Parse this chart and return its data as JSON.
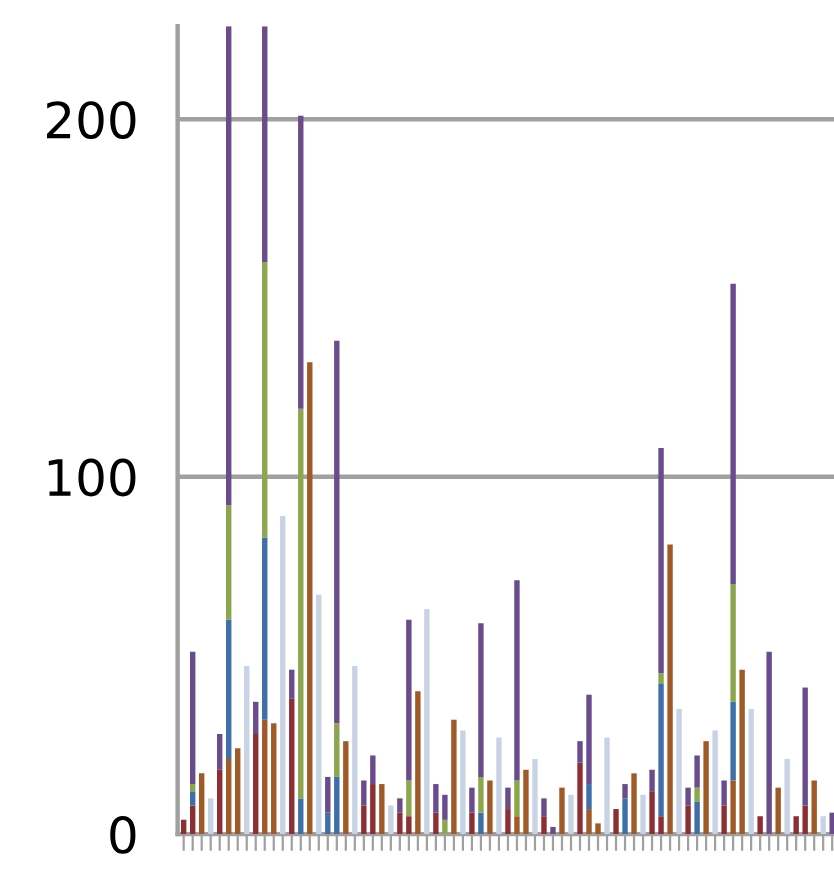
{
  "chart_data": {
    "type": "bar",
    "stacked": true,
    "categories": [
      null,
      null,
      null,
      null,
      null,
      null,
      null,
      null,
      null,
      null,
      null,
      null,
      null,
      null,
      null,
      null,
      null,
      null,
      null,
      null,
      null,
      null,
      null,
      null,
      null,
      null,
      null,
      null,
      null,
      null,
      null,
      null,
      null,
      null,
      null,
      null,
      null,
      null,
      null,
      null,
      null,
      null,
      null,
      null,
      null,
      null,
      null,
      null,
      null,
      null,
      null,
      null,
      null,
      null,
      null,
      null,
      null,
      null,
      null,
      null,
      null,
      null,
      null,
      null,
      null,
      null,
      null,
      null,
      null,
      null,
      null,
      null,
      null
    ],
    "series": [
      {
        "color": "#a05a28",
        "values": [
          0,
          0,
          17,
          0,
          0,
          21,
          24,
          0,
          0,
          32,
          31,
          0,
          0,
          0,
          132,
          0,
          0,
          0,
          26,
          0,
          0,
          0,
          14,
          0,
          0,
          0,
          40,
          0,
          0,
          0,
          32,
          0,
          0,
          0,
          15,
          0,
          0,
          5,
          18,
          0,
          0,
          0,
          13,
          0,
          0,
          7,
          3,
          0,
          0,
          0,
          17,
          0,
          0,
          0,
          81,
          0,
          0,
          0,
          26,
          0,
          0,
          15,
          46,
          0,
          0,
          0,
          13,
          0,
          0,
          0,
          15,
          0,
          0
        ]
      },
      {
        "color": "#8c2f35",
        "values": [
          4,
          8,
          0,
          0,
          18,
          0,
          0,
          0,
          28,
          0,
          0,
          0,
          38,
          0,
          0,
          0,
          0,
          0,
          0,
          0,
          8,
          14,
          0,
          0,
          6,
          5,
          0,
          0,
          6,
          0,
          0,
          0,
          6,
          0,
          0,
          0,
          7,
          0,
          0,
          0,
          5,
          0,
          0,
          0,
          20,
          0,
          0,
          0,
          7,
          0,
          0,
          0,
          12,
          5,
          0,
          0,
          8,
          0,
          0,
          0,
          8,
          0,
          0,
          0,
          5,
          0,
          0,
          0,
          5,
          8,
          0,
          0,
          0
        ]
      },
      {
        "color": "#3e6fa8",
        "values": [
          0,
          4,
          0,
          0,
          0,
          39,
          0,
          0,
          0,
          51,
          0,
          0,
          0,
          10,
          0,
          0,
          6,
          16,
          0,
          0,
          0,
          0,
          0,
          0,
          0,
          0,
          0,
          0,
          0,
          0,
          0,
          0,
          0,
          6,
          0,
          0,
          0,
          0,
          0,
          0,
          0,
          0,
          0,
          0,
          0,
          7,
          0,
          0,
          0,
          10,
          0,
          0,
          0,
          37,
          0,
          0,
          0,
          9,
          0,
          0,
          0,
          22,
          0,
          0,
          0,
          0,
          0,
          0,
          0,
          0,
          0,
          0,
          0
        ]
      },
      {
        "color": "#8ca64e",
        "values": [
          0,
          2,
          0,
          0,
          0,
          32,
          0,
          0,
          0,
          77,
          0,
          0,
          0,
          109,
          0,
          0,
          0,
          15,
          0,
          0,
          0,
          0,
          0,
          0,
          0,
          10,
          0,
          0,
          0,
          4,
          0,
          0,
          0,
          10,
          0,
          0,
          0,
          10,
          0,
          0,
          0,
          0,
          0,
          0,
          0,
          0,
          0,
          0,
          0,
          0,
          0,
          0,
          0,
          3,
          0,
          0,
          0,
          4,
          0,
          0,
          0,
          33,
          0,
          0,
          0,
          0,
          0,
          0,
          0,
          0,
          0,
          0,
          0
        ]
      },
      {
        "color": "#6a4c8c",
        "values": [
          0,
          37,
          0,
          0,
          10,
          134,
          0,
          0,
          9,
          66,
          0,
          0,
          8,
          82,
          0,
          0,
          10,
          107,
          0,
          0,
          7,
          8,
          0,
          0,
          4,
          45,
          0,
          0,
          8,
          7,
          0,
          0,
          7,
          43,
          0,
          0,
          6,
          56,
          0,
          0,
          5,
          2,
          0,
          0,
          6,
          25,
          0,
          0,
          0,
          4,
          0,
          0,
          6,
          63,
          0,
          0,
          5,
          9,
          0,
          0,
          7,
          84,
          0,
          0,
          0,
          51,
          0,
          0,
          0,
          33,
          0,
          0,
          6
        ]
      },
      {
        "color": "#c9d3e6",
        "values": [
          0,
          0,
          0,
          10,
          0,
          0,
          0,
          47,
          0,
          0,
          0,
          89,
          0,
          0,
          0,
          67,
          0,
          0,
          0,
          47,
          0,
          0,
          0,
          8,
          0,
          0,
          0,
          63,
          0,
          0,
          0,
          29,
          0,
          0,
          0,
          27,
          0,
          0,
          0,
          21,
          0,
          0,
          0,
          11,
          0,
          0,
          0,
          27,
          0,
          0,
          0,
          11,
          0,
          0,
          0,
          35,
          0,
          0,
          0,
          29,
          0,
          0,
          0,
          35,
          0,
          0,
          0,
          21,
          0,
          0,
          0,
          5,
          0
        ]
      }
    ],
    "ylim": [
      0,
      226
    ],
    "yticks": [
      0,
      100,
      200
    ],
    "grid": "y"
  }
}
